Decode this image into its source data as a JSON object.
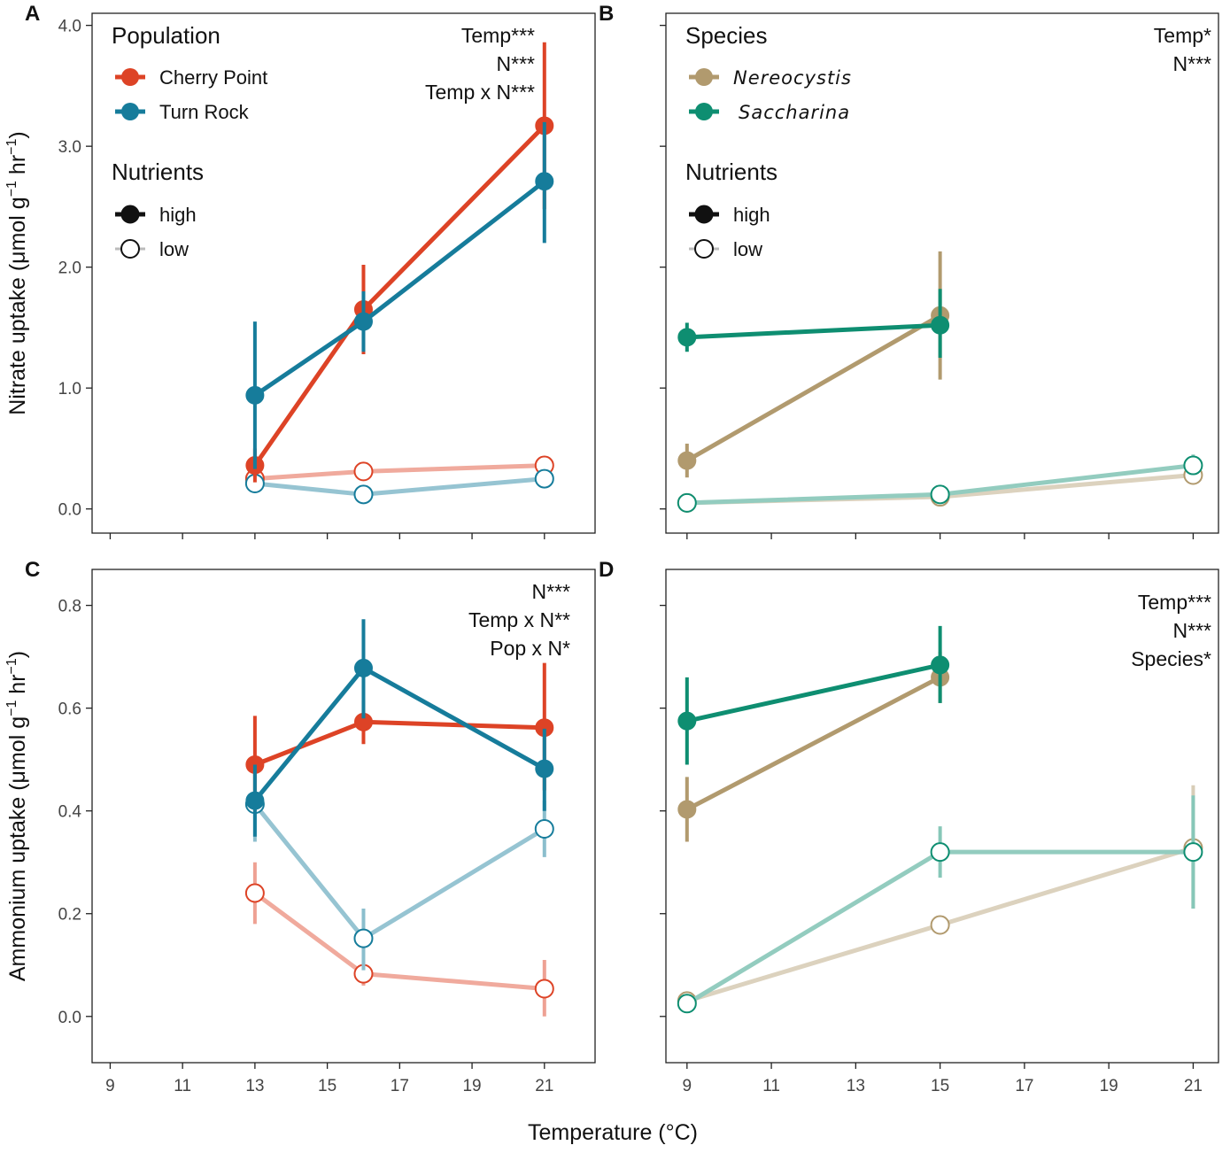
{
  "figure": {
    "shared_xlabel": "Temperature (°C)",
    "colors": {
      "cherry_point": "#DD4326",
      "turn_rock": "#167C9B",
      "nereocystis": "#B19A6E",
      "saccharina": "#0E8E71",
      "black": "#111111"
    }
  },
  "chart_data": [
    {
      "id": "A",
      "label": "A",
      "type": "line",
      "title": "",
      "xlabel": "",
      "ylabel": "Nitrate uptake (μmol g⁻¹ hr⁻¹)",
      "ylabel_parts": [
        "Nitrate uptake (",
        "μ",
        "mol g",
        "−1",
        " hr",
        "−1",
        ")"
      ],
      "xlim": [
        8.5,
        22.4
      ],
      "ylim": [
        -0.2,
        4.1
      ],
      "xticks": [
        9,
        11,
        13,
        15,
        17,
        19,
        21
      ],
      "xtick_labels": [],
      "yticks": [
        0,
        1,
        2,
        3,
        4
      ],
      "ytick_labels": [
        "0.0",
        "1.0",
        "2.0",
        "3.0",
        "4.0"
      ],
      "legend_position": "top-left",
      "legend": {
        "group_title": "Population",
        "groups": [
          {
            "label": "Cherry Point",
            "color": "#DD4326",
            "italic": false
          },
          {
            "label": "Turn Rock",
            "color": "#167C9B",
            "italic": false
          }
        ],
        "nutrient_title": "Nutrients",
        "nutrients": [
          {
            "label": "high",
            "filled": true
          },
          {
            "label": "low",
            "filled": false
          }
        ]
      },
      "stats": [
        "Temp***",
        "N***",
        "Temp x N***"
      ],
      "series": [
        {
          "name": "Cherry Point – high",
          "group": "Cherry Point",
          "nutrient": "high",
          "color": "#DD4326",
          "filled": true,
          "x": [
            13,
            16,
            21
          ],
          "y": [
            0.36,
            1.65,
            3.17
          ],
          "err_lo": [
            0.22,
            1.28,
            2.48
          ],
          "err_hi": [
            0.5,
            2.02,
            3.86
          ]
        },
        {
          "name": "Turn Rock – high",
          "group": "Turn Rock",
          "nutrient": "high",
          "color": "#167C9B",
          "filled": true,
          "x": [
            13,
            16,
            21
          ],
          "y": [
            0.94,
            1.55,
            2.71
          ],
          "err_lo": [
            0.33,
            1.3,
            2.2
          ],
          "err_hi": [
            1.55,
            1.8,
            3.2
          ]
        },
        {
          "name": "Cherry Point – low",
          "group": "Cherry Point",
          "nutrient": "low",
          "color": "#DD4326",
          "filled": false,
          "x": [
            13,
            16,
            21
          ],
          "y": [
            0.25,
            0.31,
            0.36
          ],
          "err_lo": [
            0.2,
            0.27,
            0.32
          ],
          "err_hi": [
            0.3,
            0.35,
            0.4
          ]
        },
        {
          "name": "Turn Rock – low",
          "group": "Turn Rock",
          "nutrient": "low",
          "color": "#167C9B",
          "filled": false,
          "x": [
            13,
            16,
            21
          ],
          "y": [
            0.21,
            0.12,
            0.25
          ],
          "err_lo": [
            0.17,
            0.09,
            0.21
          ],
          "err_hi": [
            0.25,
            0.15,
            0.29
          ]
        }
      ]
    },
    {
      "id": "B",
      "label": "B",
      "type": "line",
      "title": "",
      "xlabel": "",
      "ylabel": "",
      "xlim": [
        8.5,
        21.6
      ],
      "ylim": [
        -0.2,
        4.1
      ],
      "xticks": [
        9,
        11,
        13,
        15,
        17,
        19,
        21
      ],
      "xtick_labels": [],
      "yticks": [
        0,
        1,
        2,
        3,
        4
      ],
      "ytick_labels": [],
      "legend_position": "top-left",
      "legend": {
        "group_title": "Species",
        "groups": [
          {
            "label": "Nereocystis",
            "color": "#B19A6E",
            "italic": true
          },
          {
            "label": "Saccharina",
            "color": "#0E8E71",
            "italic": true
          }
        ],
        "nutrient_title": "Nutrients",
        "nutrients": [
          {
            "label": "high",
            "filled": true
          },
          {
            "label": "low",
            "filled": false
          }
        ]
      },
      "stats": [
        "Temp*",
        "N***"
      ],
      "series": [
        {
          "name": "Nereocystis – high",
          "group": "Nereocystis",
          "nutrient": "high",
          "color": "#B19A6E",
          "filled": true,
          "x": [
            9,
            15
          ],
          "y": [
            0.4,
            1.6
          ],
          "err_lo": [
            0.26,
            1.07
          ],
          "err_hi": [
            0.54,
            2.13
          ]
        },
        {
          "name": "Saccharina – high",
          "group": "Saccharina",
          "nutrient": "high",
          "color": "#0E8E71",
          "filled": true,
          "x": [
            9,
            15
          ],
          "y": [
            1.42,
            1.52
          ],
          "err_lo": [
            1.3,
            1.25
          ],
          "err_hi": [
            1.54,
            1.82
          ]
        },
        {
          "name": "Nereocystis – low",
          "group": "Nereocystis",
          "nutrient": "low",
          "color": "#B19A6E",
          "filled": false,
          "x": [
            9,
            15,
            21
          ],
          "y": [
            0.05,
            0.1,
            0.28
          ],
          "err_lo": [
            0.03,
            0.07,
            0.24
          ],
          "err_hi": [
            0.07,
            0.13,
            0.32
          ]
        },
        {
          "name": "Saccharina – low",
          "group": "Saccharina",
          "nutrient": "low",
          "color": "#0E8E71",
          "filled": false,
          "x": [
            9,
            15,
            21
          ],
          "y": [
            0.05,
            0.12,
            0.36
          ],
          "err_lo": [
            0.03,
            0.09,
            0.3
          ],
          "err_hi": [
            0.07,
            0.15,
            0.45
          ]
        }
      ]
    },
    {
      "id": "C",
      "label": "C",
      "type": "line",
      "title": "",
      "xlabel": "",
      "ylabel": "Ammonium uptake (μmol g⁻¹ hr⁻¹)",
      "ylabel_parts": [
        "Ammonium uptake (",
        "μ",
        "mol g",
        "−1",
        " hr",
        "−1",
        ")"
      ],
      "xlim": [
        8.5,
        22.4
      ],
      "ylim": [
        -0.09,
        0.87
      ],
      "xticks": [
        9,
        11,
        13,
        15,
        17,
        19,
        21
      ],
      "xtick_labels": [
        "9",
        "11",
        "13",
        "15",
        "17",
        "19",
        "21"
      ],
      "yticks": [
        0,
        0.2,
        0.4,
        0.6,
        0.8
      ],
      "ytick_labels": [
        "0.0",
        "0.2",
        "0.4",
        "0.6",
        "0.8"
      ],
      "legend_position": "none",
      "stats": [
        "N***",
        "Temp x N**",
        "Pop x N*"
      ],
      "series": [
        {
          "name": "Cherry Point – high",
          "group": "Cherry Point",
          "nutrient": "high",
          "color": "#DD4326",
          "filled": true,
          "x": [
            13,
            16,
            21
          ],
          "y": [
            0.49,
            0.573,
            0.562
          ],
          "err_lo": [
            0.4,
            0.53,
            0.44
          ],
          "err_hi": [
            0.585,
            0.615,
            0.688
          ]
        },
        {
          "name": "Turn Rock – high",
          "group": "Turn Rock",
          "nutrient": "high",
          "color": "#167C9B",
          "filled": true,
          "x": [
            13,
            16,
            21
          ],
          "y": [
            0.42,
            0.678,
            0.482
          ],
          "err_lo": [
            0.35,
            0.58,
            0.4
          ],
          "err_hi": [
            0.49,
            0.773,
            0.56
          ]
        },
        {
          "name": "Cherry Point – low",
          "group": "Cherry Point",
          "nutrient": "low",
          "color": "#DD4326",
          "filled": false,
          "x": [
            13,
            16,
            21
          ],
          "y": [
            0.24,
            0.083,
            0.054
          ],
          "err_lo": [
            0.18,
            0.06,
            0.0
          ],
          "err_hi": [
            0.3,
            0.105,
            0.11
          ]
        },
        {
          "name": "Turn Rock – low",
          "group": "Turn Rock",
          "nutrient": "low",
          "color": "#167C9B",
          "filled": false,
          "x": [
            13,
            16,
            21
          ],
          "y": [
            0.413,
            0.152,
            0.365
          ],
          "err_lo": [
            0.34,
            0.09,
            0.31
          ],
          "err_hi": [
            0.48,
            0.21,
            0.42
          ]
        }
      ]
    },
    {
      "id": "D",
      "label": "D",
      "type": "line",
      "title": "",
      "xlabel": "",
      "ylabel": "",
      "xlim": [
        8.5,
        21.6
      ],
      "ylim": [
        -0.09,
        0.87
      ],
      "xticks": [
        9,
        11,
        13,
        15,
        17,
        19,
        21
      ],
      "xtick_labels": [
        "9",
        "11",
        "13",
        "15",
        "17",
        "19",
        "21"
      ],
      "yticks": [
        0,
        0.2,
        0.4,
        0.6,
        0.8
      ],
      "ytick_labels": [],
      "legend_position": "none",
      "stats": [
        "Temp***",
        "N***",
        "Species*"
      ],
      "series": [
        {
          "name": "Nereocystis – high",
          "group": "Nereocystis",
          "nutrient": "high",
          "color": "#B19A6E",
          "filled": true,
          "x": [
            9,
            15
          ],
          "y": [
            0.403,
            0.66
          ],
          "err_lo": [
            0.34,
            0.61
          ],
          "err_hi": [
            0.466,
            0.71
          ]
        },
        {
          "name": "Saccharina – high",
          "group": "Saccharina",
          "nutrient": "high",
          "color": "#0E8E71",
          "filled": true,
          "x": [
            9,
            15
          ],
          "y": [
            0.575,
            0.684
          ],
          "err_lo": [
            0.49,
            0.61
          ],
          "err_hi": [
            0.66,
            0.76
          ]
        },
        {
          "name": "Nereocystis – low",
          "group": "Nereocystis",
          "nutrient": "low",
          "color": "#B19A6E",
          "filled": false,
          "x": [
            9,
            15,
            21
          ],
          "y": [
            0.03,
            0.178,
            0.328
          ],
          "err_lo": [
            0.02,
            0.16,
            0.21
          ],
          "err_hi": [
            0.04,
            0.196,
            0.45
          ]
        },
        {
          "name": "Saccharina – low",
          "group": "Saccharina",
          "nutrient": "low",
          "color": "#0E8E71",
          "filled": false,
          "x": [
            9,
            15,
            21
          ],
          "y": [
            0.025,
            0.32,
            0.32
          ],
          "err_lo": [
            0.015,
            0.27,
            0.21
          ],
          "err_hi": [
            0.035,
            0.37,
            0.43
          ]
        }
      ]
    }
  ]
}
